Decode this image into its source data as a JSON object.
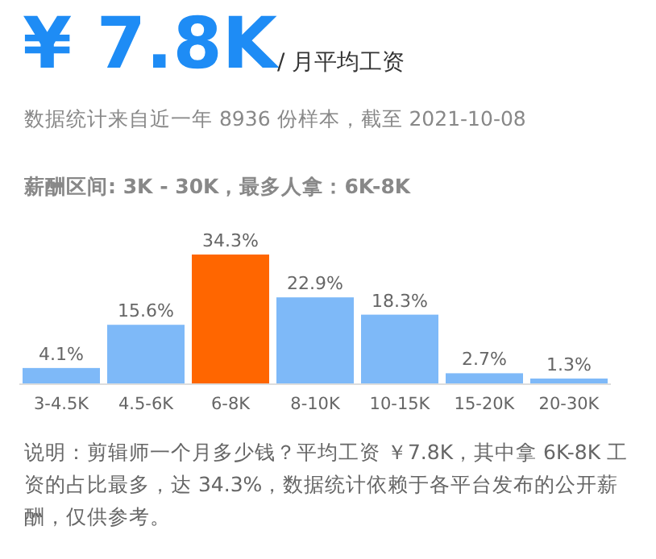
{
  "chart_data": {
    "type": "bar",
    "title": "¥ 7.8K",
    "subtitle": "/ 月平均工资",
    "annotations": [
      "数据统计来自近一年 8936 份样本，截至 2021-10-08",
      "薪酬区间: 3K - 30K，最多人拿：6K-8K",
      "说明：剪辑师一个月多少钱？平均工资 ￥7.8K，其中拿 6K-8K 工资的占比最多，达 34.3%，数据统计依赖于各平台发布的公开薪酬，仅供参考。"
    ],
    "categories": [
      "3-4.5K",
      "4.5-6K",
      "6-8K",
      "8-10K",
      "10-15K",
      "15-20K",
      "20-30K"
    ],
    "values": [
      4.1,
      15.6,
      34.3,
      22.9,
      18.3,
      2.7,
      1.3
    ],
    "colors": [
      "#7eb9f8",
      "#7eb9f8",
      "#ff6600",
      "#7eb9f8",
      "#7eb9f8",
      "#7eb9f8",
      "#7eb9f8"
    ],
    "value_labels": [
      "4.1%",
      "15.6%",
      "34.3%",
      "22.9%",
      "18.3%",
      "2.7%",
      "1.3%"
    ]
  }
}
